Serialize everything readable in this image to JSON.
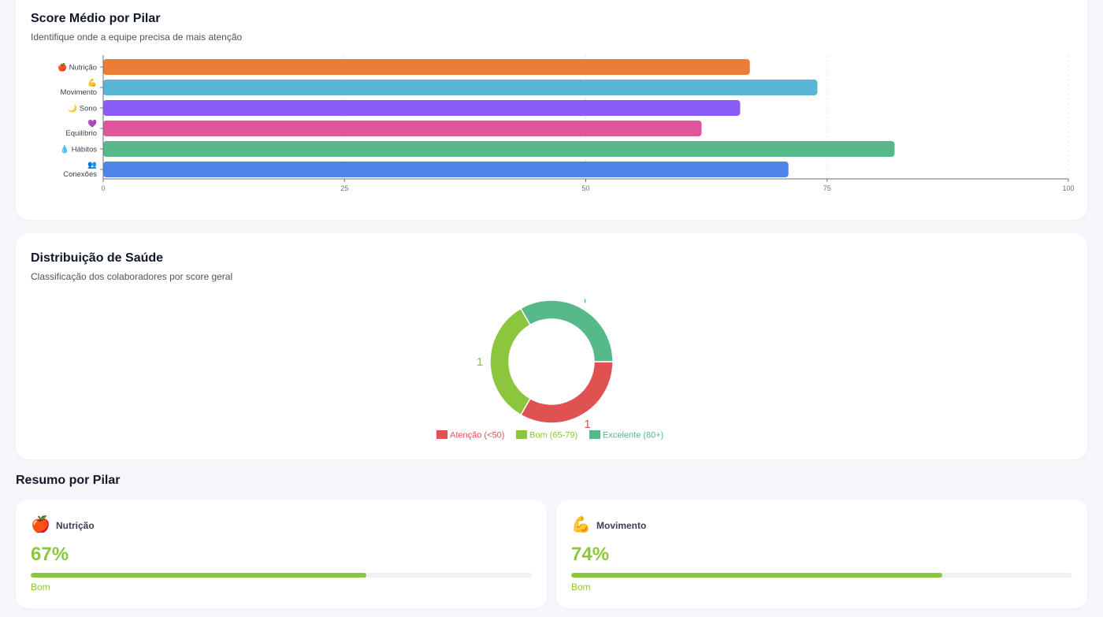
{
  "score_card": {
    "title": "Score Médio por Pilar",
    "subtitle": "Identifique onde a equipe precisa de mais atenção"
  },
  "distribution_card": {
    "title": "Distribuição de Saúde",
    "subtitle": "Classificação dos colaboradores por score geral"
  },
  "chart_data": [
    {
      "type": "bar",
      "orientation": "horizontal",
      "title": "Score Médio por Pilar",
      "categories": [
        "🍎 Nutrição",
        "💪 Movimento",
        "🌙 Sono",
        "💜 Equilíbrio",
        "💧 Hábitos",
        "👥 Conexões"
      ],
      "category_lines": [
        [
          "🍎 Nutrição"
        ],
        [
          "💪",
          "Movimento"
        ],
        [
          "🌙 Sono"
        ],
        [
          "💜",
          "Equilíbrio"
        ],
        [
          "💧 Hábitos"
        ],
        [
          "👥",
          "Conexões"
        ]
      ],
      "values": [
        67,
        74,
        66,
        62,
        82,
        71
      ],
      "colors": [
        "#ed7d36",
        "#56b6d4",
        "#8b5cf6",
        "#e0569a",
        "#55b98a",
        "#4f84ec"
      ],
      "xlim": [
        0,
        100
      ],
      "xticks": [
        "0",
        "25",
        "50",
        "75",
        "100"
      ],
      "grid": "vertical dashed"
    },
    {
      "type": "pie",
      "variant": "donut",
      "title": "Distribuição de Saúde",
      "labels": [
        "Atenção (<50)",
        "Bom (65-79)",
        "Excelente (80+)"
      ],
      "values": [
        1,
        1,
        1
      ],
      "colors": [
        "#e05252",
        "#8cc63f",
        "#55b98a"
      ],
      "legend": "bottom",
      "data_labels": [
        "1",
        "1",
        ""
      ]
    }
  ],
  "resumo": {
    "title": "Resumo por Pilar",
    "pillars": [
      {
        "icon": "🍎",
        "icon_name": "apple-icon",
        "name": "Nutrição",
        "value_text": "67%",
        "progress": 67,
        "status": "Bom",
        "color": "#8cc63f"
      },
      {
        "icon": "💪",
        "icon_name": "flexed-bicep-icon",
        "name": "Movimento",
        "value_text": "74%",
        "progress": 74,
        "status": "Bom",
        "color": "#8cc63f"
      }
    ]
  }
}
